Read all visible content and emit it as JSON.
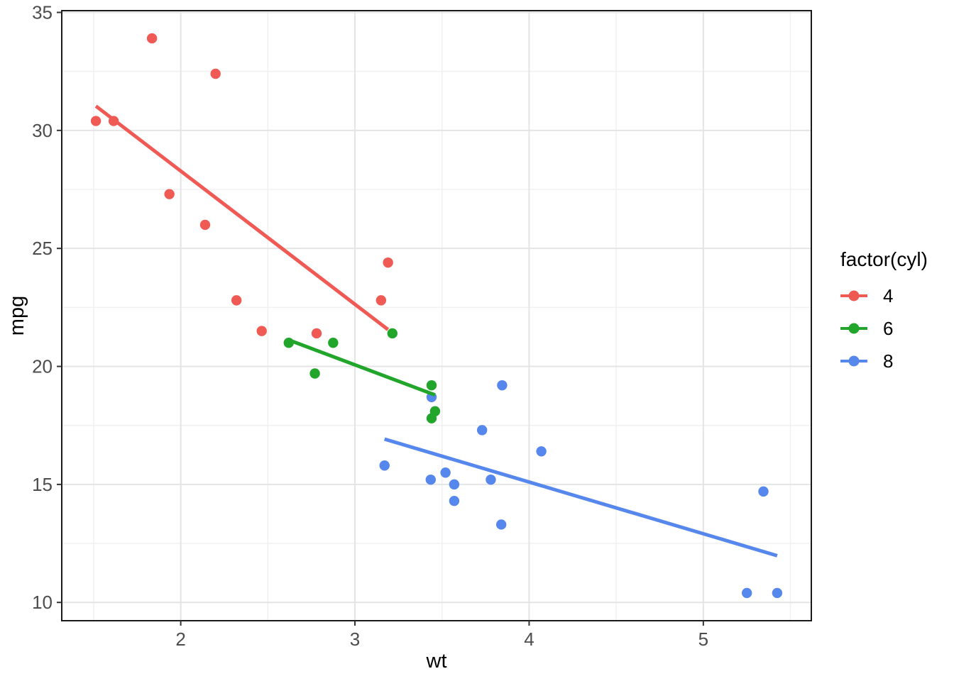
{
  "chart_data": {
    "type": "scatter",
    "title": "",
    "xlabel": "wt",
    "ylabel": "mpg",
    "xlim": [
      1.317,
      5.62
    ],
    "ylim": [
      9.225,
      35.075
    ],
    "x_ticks": [
      2,
      3,
      4,
      5
    ],
    "y_ticks": [
      10,
      15,
      20,
      25,
      30,
      35
    ],
    "x_minor_ticks": [
      1.5,
      2.5,
      3.5,
      4.5,
      5.5
    ],
    "y_minor_ticks": [
      12.5,
      17.5,
      22.5,
      27.5,
      32.5
    ],
    "grid": true,
    "legend": {
      "title": "factor(cyl)",
      "position": "right"
    },
    "series": [
      {
        "name": "4",
        "color": "#F05A55",
        "points": [
          [
            1.513,
            30.4
          ],
          [
            1.615,
            30.4
          ],
          [
            1.835,
            33.9
          ],
          [
            1.935,
            27.3
          ],
          [
            2.14,
            26.0
          ],
          [
            2.2,
            32.4
          ],
          [
            2.32,
            22.8
          ],
          [
            2.465,
            21.5
          ],
          [
            2.78,
            21.4
          ],
          [
            3.15,
            22.8
          ],
          [
            3.19,
            24.4
          ]
        ],
        "trend_line": {
          "x1": 1.513,
          "y1": 31.03,
          "x2": 3.19,
          "y2": 21.56
        }
      },
      {
        "name": "6",
        "color": "#21A62B",
        "points": [
          [
            2.62,
            21.0
          ],
          [
            2.77,
            19.7
          ],
          [
            2.875,
            21.0
          ],
          [
            3.215,
            21.4
          ],
          [
            3.44,
            19.2
          ],
          [
            3.44,
            17.8
          ],
          [
            3.46,
            18.1
          ]
        ],
        "trend_line": {
          "x1": 2.62,
          "y1": 21.12,
          "x2": 3.46,
          "y2": 18.79
        }
      },
      {
        "name": "8",
        "color": "#5587EC",
        "points": [
          [
            3.17,
            15.8
          ],
          [
            3.435,
            15.2
          ],
          [
            3.44,
            18.7
          ],
          [
            3.52,
            15.5
          ],
          [
            3.57,
            14.3
          ],
          [
            3.57,
            15.0
          ],
          [
            3.73,
            17.3
          ],
          [
            3.78,
            15.2
          ],
          [
            3.84,
            13.3
          ],
          [
            3.845,
            19.2
          ],
          [
            4.07,
            16.4
          ],
          [
            5.25,
            10.4
          ],
          [
            5.345,
            14.7
          ],
          [
            5.424,
            10.4
          ]
        ],
        "trend_line": {
          "x1": 3.17,
          "y1": 16.92,
          "x2": 5.424,
          "y2": 11.98
        }
      }
    ]
  },
  "palette": {
    "panel_background": "#FFFFFF",
    "grid_major": "#E4E4E4",
    "grid_minor": "#F0F0F0",
    "panel_border": "#1A1A1A",
    "tick_mark": "#333333",
    "tick_label": "#4D4D4D",
    "axis_title": "#000000"
  }
}
